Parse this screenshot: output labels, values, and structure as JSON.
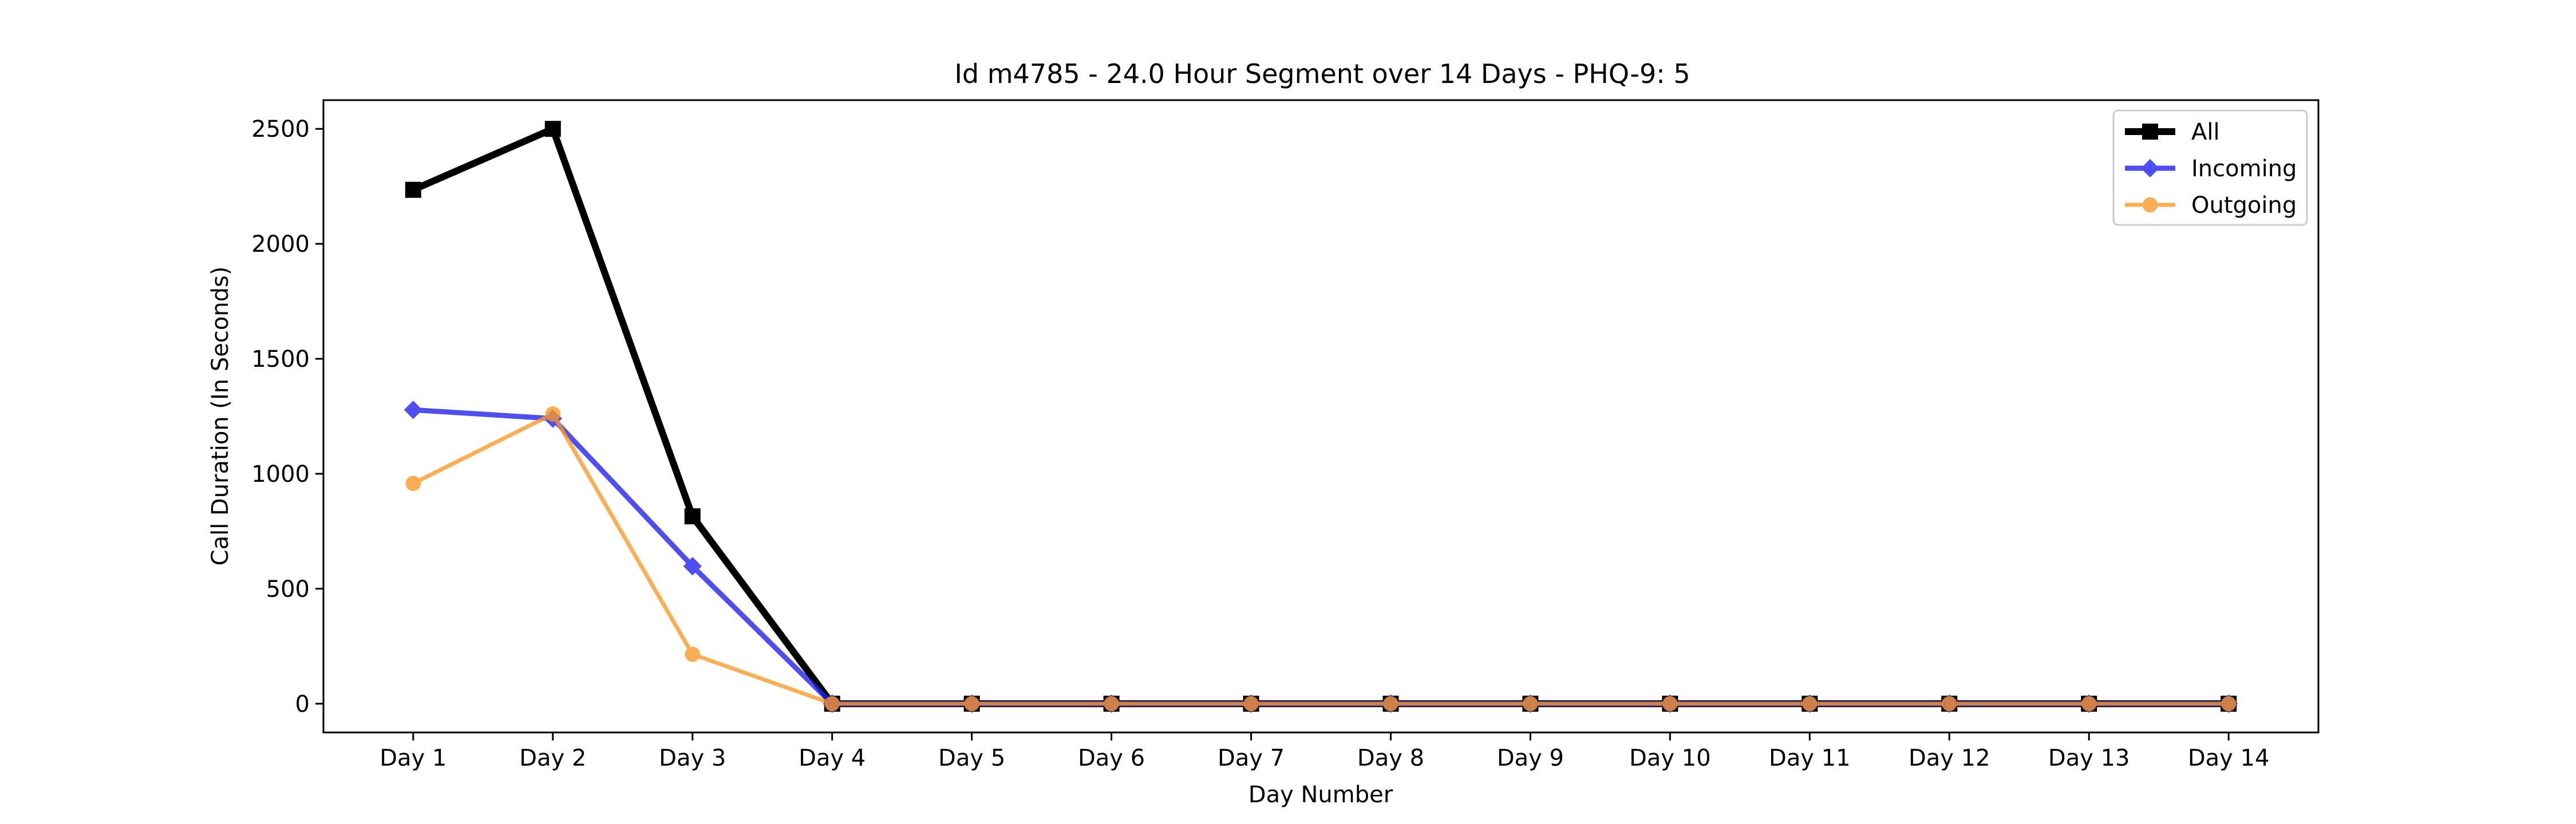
{
  "chart_data": {
    "type": "line",
    "title": "Id m4785 - 24.0 Hour Segment over 14 Days - PHQ-9: 5",
    "xlabel": "Day Number",
    "ylabel": "Call Duration (In Seconds)",
    "categories": [
      "Day 1",
      "Day 2",
      "Day 3",
      "Day 4",
      "Day 5",
      "Day 6",
      "Day 7",
      "Day 8",
      "Day 9",
      "Day 10",
      "Day 11",
      "Day 12",
      "Day 13",
      "Day 14"
    ],
    "ylim": [
      -125,
      2625
    ],
    "yticks": [
      0,
      500,
      1000,
      1500,
      2000,
      2500
    ],
    "grid": false,
    "legend_position": "top-right",
    "series": [
      {
        "name": "All",
        "color": "#000000",
        "marker": "square",
        "values": [
          2235,
          2500,
          815,
          0,
          0,
          0,
          0,
          0,
          0,
          0,
          0,
          0,
          0,
          0
        ]
      },
      {
        "name": "Incoming",
        "color": "#2222ee",
        "marker": "diamond",
        "values": [
          1278,
          1240,
          598,
          0,
          0,
          0,
          0,
          0,
          0,
          0,
          0,
          0,
          0,
          0
        ]
      },
      {
        "name": "Outgoing",
        "color": "#f99a2a",
        "marker": "circle",
        "values": [
          958,
          1260,
          215,
          0,
          0,
          0,
          0,
          0,
          0,
          0,
          0,
          0,
          0,
          0
        ]
      }
    ]
  }
}
